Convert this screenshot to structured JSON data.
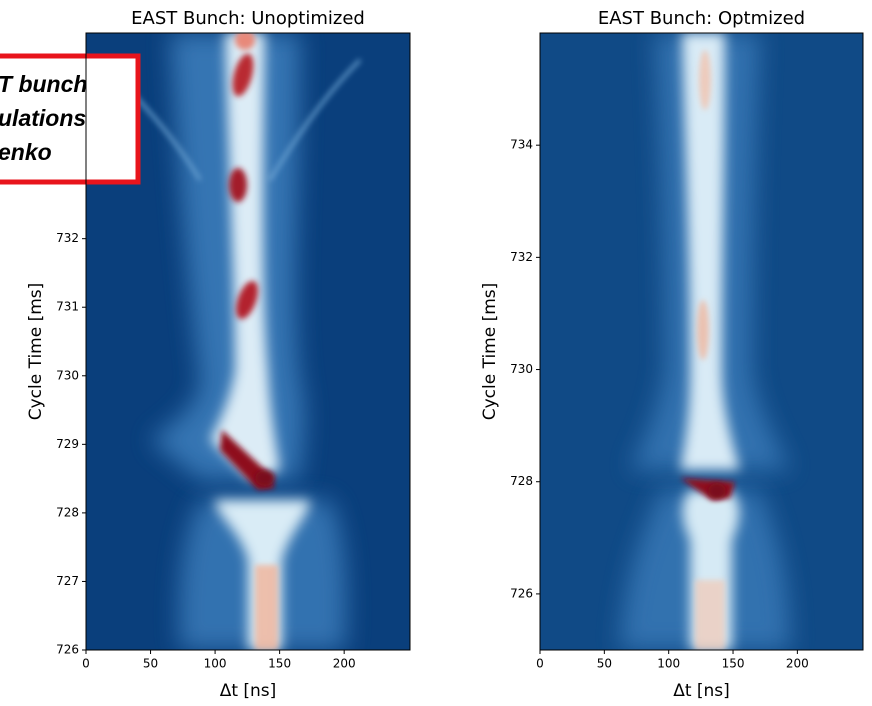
{
  "chart_data": [
    {
      "type": "heatmap",
      "title": "EAST Bunch: Unoptimized",
      "x_label": "Δt [ns]",
      "y_label": "Cycle Time [ms]",
      "xlim": [
        0,
        251
      ],
      "xticks": [
        0,
        50,
        100,
        150,
        200
      ],
      "ylim": [
        726,
        735
      ],
      "yticks": [
        726,
        727,
        728,
        729,
        730,
        731,
        732
      ],
      "colormap": "RdBu_r",
      "annotation": [
        "T bunch",
        "ulations",
        "enko"
      ]
    },
    {
      "type": "heatmap",
      "title": "EAST Bunch: Optmized",
      "x_label": "Δt [ns]",
      "y_label": "Cycle Time [ms]",
      "xlim": [
        0,
        251
      ],
      "xticks": [
        0,
        50,
        100,
        150,
        200
      ],
      "ylim": [
        725,
        736
      ],
      "yticks": [
        726,
        728,
        730,
        732,
        734
      ],
      "colormap": "RdBu_r"
    }
  ]
}
